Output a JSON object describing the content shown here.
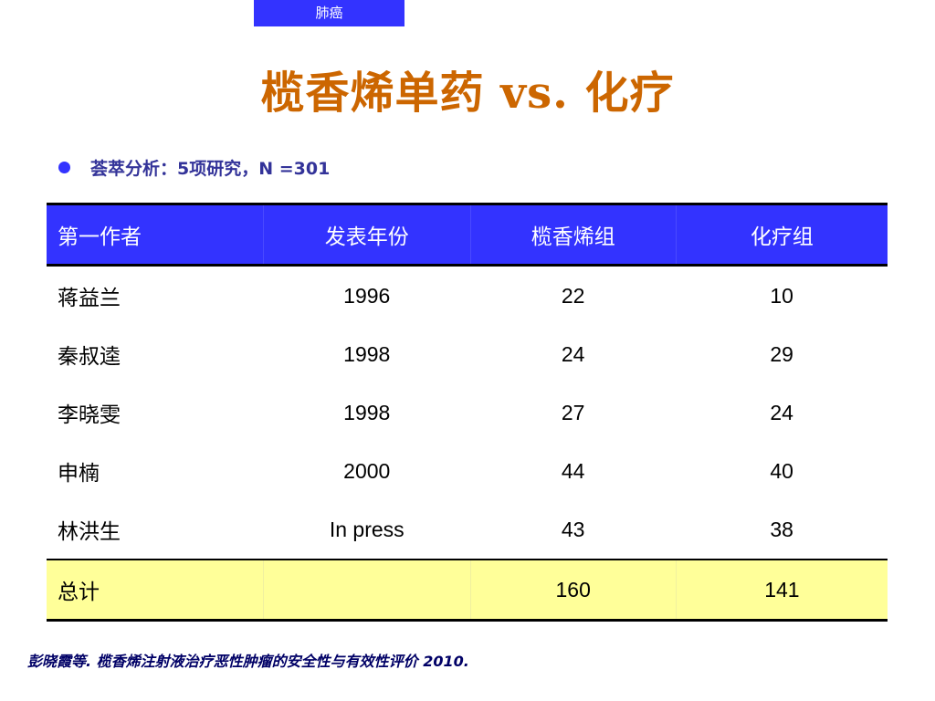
{
  "header_tag": "肺癌",
  "title": "榄香烯单药 vs. 化疗",
  "bullet": "荟萃分析：5项研究，N =301",
  "colors": {
    "header_bg": "#3333ff",
    "title": "#cc6600",
    "total_row_bg": "#ffff99"
  },
  "table": {
    "headers": [
      "第一作者",
      "发表年份",
      "榄香烯组",
      "化疗组"
    ],
    "rows": [
      [
        "蒋益兰",
        "1996",
        "22",
        "10"
      ],
      [
        "秦叔逵",
        "1998",
        "24",
        "29"
      ],
      [
        "李晓雯",
        "1998",
        "27",
        "24"
      ],
      [
        "申楠",
        "2000",
        "44",
        "40"
      ],
      [
        "林洪生",
        "In press",
        "43",
        "38"
      ]
    ],
    "total": [
      "总计",
      "",
      "160",
      "141"
    ]
  },
  "footnote": "彭晓霞等. 榄香烯注射液治疗恶性肿瘤的安全性与有效性评价 2010."
}
